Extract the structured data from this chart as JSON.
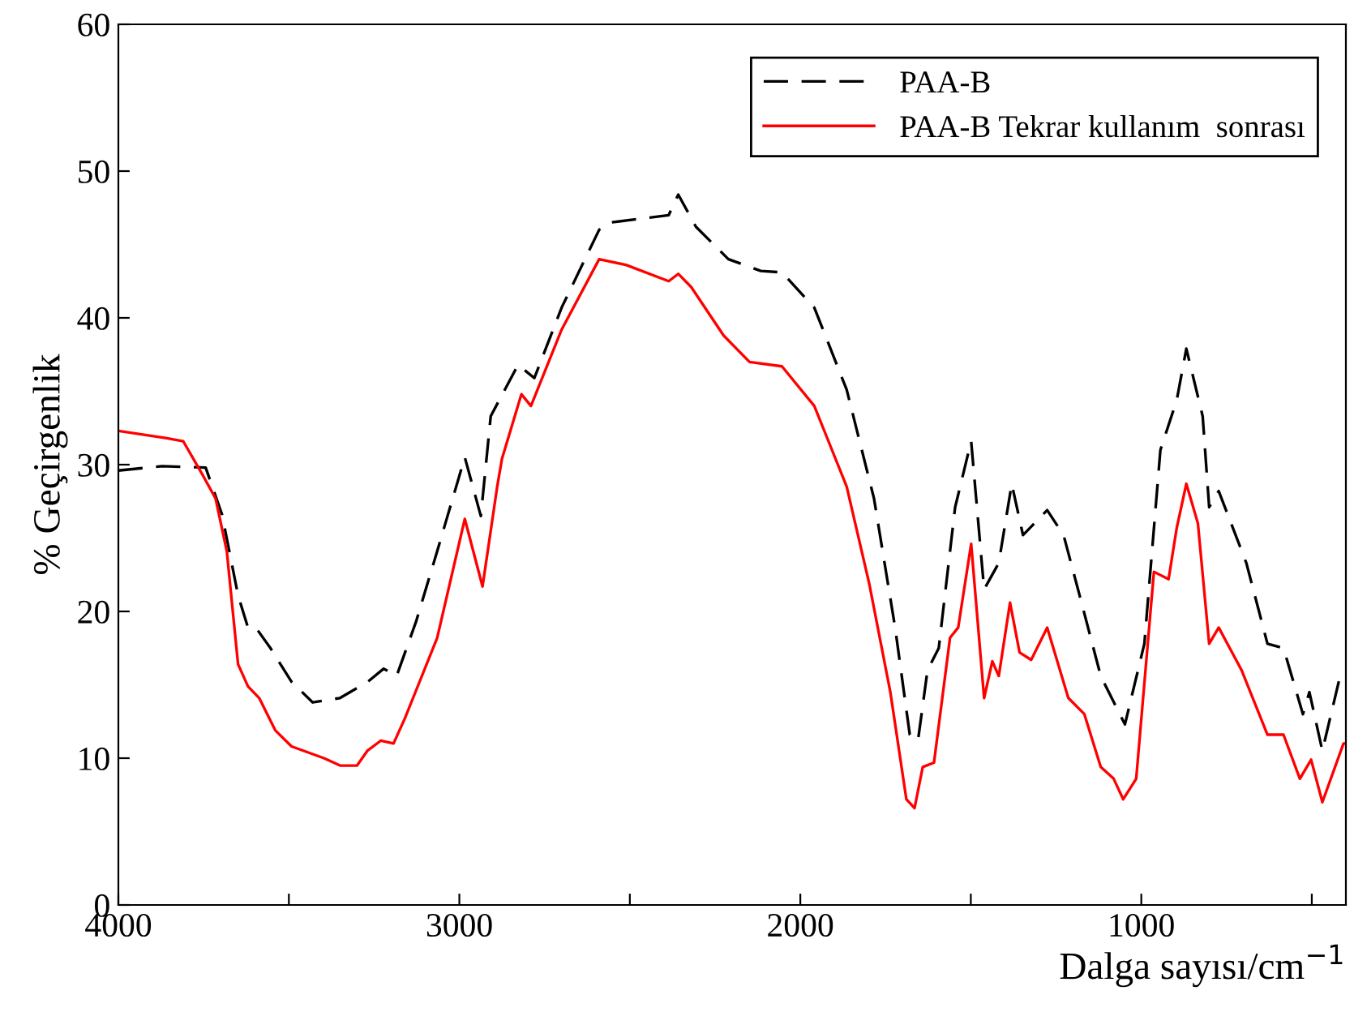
{
  "chart_data": {
    "type": "line",
    "xlabel": "Dalga sayısı/cm$^{−1}$",
    "ylabel": "% Geçirgenlik",
    "xlim": [
      4000,
      400
    ],
    "ylim": [
      0,
      60
    ],
    "xticks": [
      4000,
      {
        "value": 3500,
        "label": null
      },
      3000,
      {
        "value": 2500,
        "label": null
      },
      2000,
      {
        "value": 1500,
        "label": null
      },
      1000,
      {
        "value": 500,
        "label": null
      }
    ],
    "yticks": [
      0,
      10,
      20,
      30,
      40,
      50,
      60
    ],
    "grid": false,
    "legend": "top right",
    "series": [
      {
        "name": "PAA-B",
        "color": "#000000",
        "line_style": "dashed",
        "x": [
          4000,
          3872,
          3744,
          3696,
          3649,
          3620,
          3597,
          3554,
          3492,
          3430,
          3350,
          3269,
          3222,
          3184,
          3127,
          3065,
          2984,
          2937,
          2908,
          2828,
          2780,
          2700,
          2590,
          2557,
          2386,
          2358,
          2306,
          2211,
          2116,
          2054,
          1959,
          1864,
          1784,
          1722,
          1679,
          1655,
          1627,
          1594,
          1546,
          1499,
          1461,
          1418,
          1380,
          1347,
          1276,
          1228,
          1181,
          1119,
          1048,
          991,
          944,
          896,
          868,
          820,
          801,
          773,
          692,
          630,
          583,
          526,
          507,
          469,
          417,
          400
        ],
        "values": [
          29.6,
          29.9,
          29.8,
          26.6,
          21.1,
          18.9,
          18.9,
          17.5,
          15.2,
          13.8,
          14.1,
          15.2,
          16.1,
          15.6,
          19.3,
          24.1,
          30.5,
          26.5,
          33.3,
          36.8,
          35.9,
          40.7,
          46.0,
          46.5,
          47.0,
          48.4,
          46.2,
          44.0,
          43.2,
          43.1,
          40.7,
          35.1,
          27.7,
          18.9,
          11.6,
          11.2,
          16.0,
          17.5,
          27.1,
          31.6,
          21.5,
          23.3,
          28.7,
          25.2,
          26.9,
          25.2,
          21.1,
          15.6,
          12.3,
          17.8,
          31.0,
          34.4,
          37.9,
          33.3,
          27.1,
          28.2,
          23.3,
          17.8,
          17.5,
          13.0,
          14.5,
          10.5,
          15.6,
          15.8
        ]
      },
      {
        "name": "PAA-B Tekrar kullanım  sonrası",
        "color": "#ff0000",
        "line_style": "solid",
        "x": [
          4000,
          3858,
          3810,
          3753,
          3715,
          3682,
          3649,
          3620,
          3587,
          3540,
          3492,
          3397,
          3350,
          3300,
          3270,
          3230,
          3193,
          3160,
          3065,
          2984,
          2932,
          2889,
          2875,
          2818,
          2790,
          2700,
          2590,
          2510,
          2386,
          2358,
          2320,
          2225,
          2149,
          2054,
          1959,
          1864,
          1798,
          1736,
          1689,
          1665,
          1641,
          1608,
          1561,
          1537,
          1499,
          1461,
          1437,
          1418,
          1385,
          1357,
          1323,
          1276,
          1214,
          1167,
          1119,
          1081,
          1053,
          1015,
          963,
          920,
          896,
          868,
          834,
          801,
          773,
          706,
          630,
          583,
          535,
          502,
          469,
          407,
          400
        ],
        "values": [
          32.3,
          31.8,
          31.6,
          29.3,
          27.7,
          24.1,
          16.4,
          14.9,
          14.1,
          11.9,
          10.8,
          10.0,
          9.5,
          9.5,
          10.5,
          11.2,
          11.0,
          12.7,
          18.2,
          26.3,
          21.7,
          28.5,
          30.4,
          34.8,
          34.0,
          39.2,
          44.0,
          43.6,
          42.5,
          43.0,
          42.1,
          38.8,
          37.0,
          36.7,
          34.0,
          28.5,
          21.9,
          14.5,
          7.2,
          6.6,
          9.4,
          9.7,
          18.2,
          18.9,
          24.6,
          14.1,
          16.6,
          15.6,
          20.6,
          17.2,
          16.7,
          18.9,
          14.1,
          13.0,
          9.4,
          8.6,
          7.2,
          8.6,
          22.7,
          22.2,
          25.7,
          28.7,
          26.0,
          17.8,
          18.9,
          16.0,
          11.6,
          11.6,
          8.6,
          9.9,
          7.0,
          11.0,
          11.0
        ]
      }
    ]
  }
}
